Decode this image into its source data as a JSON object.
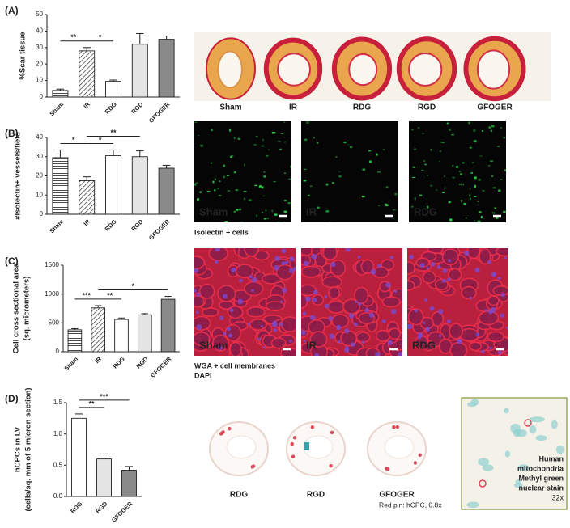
{
  "chart_data": [
    {
      "type": "bar",
      "panel": "(A)",
      "ylabel": [
        "%Scar tissue"
      ],
      "categories": [
        "Sham",
        "IR",
        "RDG",
        "RGD",
        "GFOGER"
      ],
      "values": [
        4,
        28,
        9.5,
        32,
        35
      ],
      "errors": [
        0.8,
        2,
        0.8,
        6.5,
        2
      ],
      "colors": [
        "#ffffff",
        "#ffffff",
        "#ffffff",
        "#e4e4e4",
        "#8a8a8a"
      ],
      "hatch": [
        "hlines",
        "diagonal",
        null,
        null,
        null
      ],
      "ylim": [
        0,
        50
      ],
      "yticks": [
        0,
        10,
        20,
        30,
        40,
        50
      ],
      "significance": [
        {
          "from": 0,
          "to": 1,
          "label": "**"
        },
        {
          "from": 1,
          "to": 2,
          "label": "*"
        }
      ],
      "micrograph_kind": "heart",
      "micrograph_labels": [
        "Sham",
        "IR",
        "RDG",
        "RGD",
        "GFOGER"
      ]
    },
    {
      "type": "bar",
      "panel": "(B)",
      "ylabel": [
        "#Isolectin+ vessels/field"
      ],
      "categories": [
        "Sham",
        "IR",
        "RDG",
        "RGD",
        "GFOGER"
      ],
      "values": [
        29.5,
        17.5,
        30.5,
        30,
        24
      ],
      "errors": [
        4,
        2,
        3,
        3,
        1.5
      ],
      "colors": [
        "#ffffff",
        "#ffffff",
        "#ffffff",
        "#e4e4e4",
        "#8a8a8a"
      ],
      "hatch": [
        "hlines",
        "diagonal",
        null,
        null,
        null
      ],
      "ylim": [
        0,
        40
      ],
      "yticks": [
        0,
        10,
        20,
        30,
        40
      ],
      "significance": [
        {
          "from": 0,
          "to": 1,
          "label": "*"
        },
        {
          "from": 1,
          "to": 2,
          "label": "*"
        },
        {
          "from": 1,
          "to": 3,
          "label": "**"
        }
      ],
      "micrograph_kind": "isolectin",
      "micrograph_labels": [
        "Sham",
        "IR",
        "RDG"
      ],
      "legend": [
        {
          "text": "Isolectin + cells",
          "color": "#1fb24a"
        }
      ]
    },
    {
      "type": "bar",
      "panel": "(C)",
      "ylabel": [
        "Cell cross sectional area",
        "(sq. micrometers)"
      ],
      "categories": [
        "Sham",
        "IR",
        "RDG",
        "RGD",
        "GFOGER"
      ],
      "values": [
        380,
        760,
        560,
        640,
        910
      ],
      "errors": [
        20,
        40,
        25,
        20,
        50
      ],
      "colors": [
        "#ffffff",
        "#ffffff",
        "#ffffff",
        "#e4e4e4",
        "#8a8a8a"
      ],
      "hatch": [
        "hlines",
        "diagonal",
        null,
        null,
        null
      ],
      "ylim": [
        0,
        1500
      ],
      "yticks": [
        0,
        500,
        1000,
        1500
      ],
      "significance": [
        {
          "from": 0,
          "to": 1,
          "label": "***"
        },
        {
          "from": 1,
          "to": 2,
          "label": "**"
        },
        {
          "from": 1,
          "to": 4,
          "label": "*"
        }
      ],
      "micrograph_kind": "wga",
      "micrograph_labels": [
        "Sham",
        "IR",
        "RDG"
      ],
      "legend": [
        {
          "text": "WGA + cell membranes",
          "color": "#e0202a"
        },
        {
          "text": "DAPI",
          "color": "#2a7fd0"
        }
      ]
    },
    {
      "type": "bar",
      "panel": "(D)",
      "ylabel": [
        "hCPCs in LV",
        "(cells/sq. mm of 5 micron section)"
      ],
      "categories": [
        "RDG",
        "RGD",
        "GFOGER"
      ],
      "values": [
        1.25,
        0.6,
        0.42
      ],
      "errors": [
        0.07,
        0.08,
        0.06
      ],
      "colors": [
        "#ffffff",
        "#e4e4e4",
        "#8a8a8a"
      ],
      "hatch": [
        null,
        null,
        null
      ],
      "ylim": [
        0,
        1.5
      ],
      "yticks": [
        {
          "value": 0,
          "label": "0.0"
        },
        0.5,
        {
          "value": 1,
          "label": "1.0"
        },
        1.5
      ],
      "significance": [
        {
          "from": 0,
          "to": 1,
          "label": "**"
        },
        {
          "from": 0,
          "to": 2,
          "label": "***"
        }
      ],
      "micrograph_kind": "pins",
      "micrograph_labels": [
        "RDG",
        "RGD",
        "GFOGER"
      ],
      "note": "Red pin: hCPC, 0.8x",
      "inset_labels": [
        {
          "text": "Human",
          "color": "#e0202a"
        },
        {
          "text": "mitochondria",
          "color": "#e0202a"
        },
        {
          "text": "Methyl green",
          "color": "#12a84a"
        },
        {
          "text": "nuclear stain",
          "color": "#12a84a"
        },
        {
          "text": "32x",
          "color": "#222222"
        }
      ]
    }
  ]
}
